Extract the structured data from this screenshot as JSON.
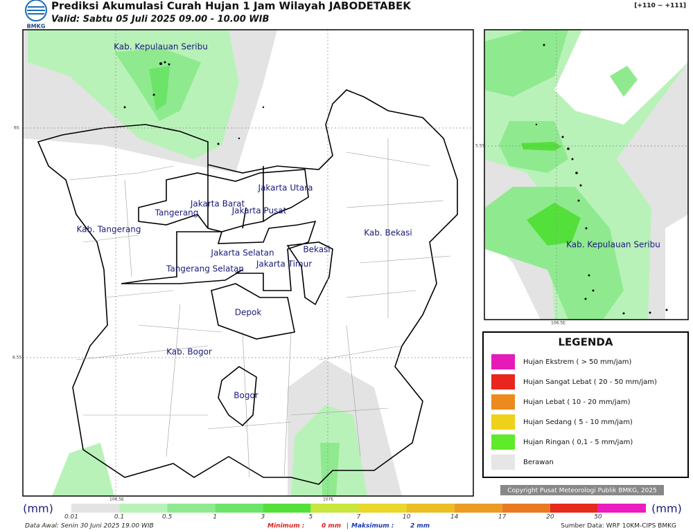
{
  "header": {
    "logo": "BMKG",
    "title": "Prediksi Akumulasi Curah Hujan 1 Jam Wilayah JABODETABEK",
    "subtitle": "Valid: Sabtu 05 Juli 2025 09.00 - 10.00 WIB",
    "code": "[+110 ~ +111]"
  },
  "main_map": {
    "regions": [
      "Kab. Kepulauan Seribu",
      "Jakarta Utara",
      "Jakarta Barat",
      "Jakarta Pusat",
      "Tangerang",
      "Kab. Tangerang",
      "Jakarta Selatan",
      "Jakarta Timur",
      "Bekasi",
      "Kab. Bekasi",
      "Tangerang Selatan",
      "Depok",
      "Kab. Bogor",
      "Bogor"
    ],
    "lat_labels": [
      "6S",
      "6.5S"
    ],
    "lon_labels": [
      "106.5E",
      "107E"
    ]
  },
  "inset_map": {
    "region": "Kab. Kepulauan Seribu",
    "lat_label": "5.5S",
    "lon_label": "106.5E"
  },
  "legend": {
    "title": "LEGENDA",
    "items": [
      {
        "label": "Hujan Ekstrem ( > 50 mm/jam)",
        "color": "#e619b9"
      },
      {
        "label": "Hujan Sangat Lebat ( 20 - 50 mm/jam)",
        "color": "#e8261e"
      },
      {
        "label": "Hujan Lebat ( 10 - 20 mm/jam)",
        "color": "#ec8a1e"
      },
      {
        "label": "Hujan Sedang ( 5 - 10 mm/jam)",
        "color": "#eed118"
      },
      {
        "label": "Hujan Ringan ( 0,1 - 5 mm/jam)",
        "color": "#5fea2a"
      },
      {
        "label": "Berawan",
        "color": "#e6e6e6"
      }
    ]
  },
  "copyright": "Copyright Pusat Meteorologi Publik BMKG, 2025",
  "colorbar": {
    "unit": "(mm)",
    "steps": [
      {
        "label": "0.01",
        "color": "#e3e3e3"
      },
      {
        "label": "0.1",
        "color": "#b9f2b9"
      },
      {
        "label": "0.5",
        "color": "#8fea8f"
      },
      {
        "label": "1",
        "color": "#6ce46a"
      },
      {
        "label": "3",
        "color": "#54e03a"
      },
      {
        "label": "5",
        "color": "#c9e63c"
      },
      {
        "label": "7",
        "color": "#ead72a"
      },
      {
        "label": "10",
        "color": "#ebbf24"
      },
      {
        "label": "14",
        "color": "#ec9c22"
      },
      {
        "label": "17",
        "color": "#ea7a22"
      },
      {
        "label": "20",
        "color": "#e62a1c"
      },
      {
        "label": "50",
        "color": "#ec1cc0"
      }
    ]
  },
  "footer": {
    "data_awal": "Data Awal: Senin 30 Juni 2025 19.00 WIB",
    "min_label": "Minimum :",
    "min_value": "0 mm",
    "separator": "|",
    "max_label": "Maksimum :",
    "max_value": "2 mm",
    "source": "Sumber Data: WRF 10KM-CIPS BMKG"
  }
}
